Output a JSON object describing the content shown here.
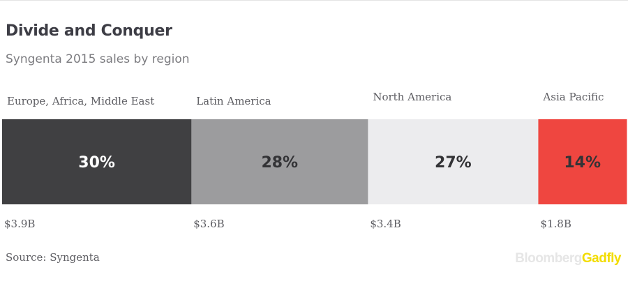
{
  "header": {
    "title": "Divide and Conquer",
    "subtitle": "Syngenta 2015 sales by region"
  },
  "chart_data": {
    "type": "bar",
    "orientation": "stacked-horizontal",
    "categories": [
      "Europe, Africa, Middle East",
      "Latin America",
      "North America",
      "Asia Pacific"
    ],
    "values": [
      30,
      28,
      27,
      14
    ],
    "value_labels": [
      "30%",
      "28%",
      "27%",
      "14%"
    ],
    "sales_labels": [
      "$3.9B",
      "$3.6B",
      "$3.4B",
      "$1.8B"
    ],
    "colors": [
      "#404042",
      "#9c9c9e",
      "#ececee",
      "#ef4640"
    ],
    "label_colors": [
      "#ffffff",
      "#333336",
      "#333336",
      "#333336"
    ]
  },
  "footer": {
    "source": "Source: Syngenta",
    "brand_part1": "Bloomberg",
    "brand_part2": "Gadfly"
  }
}
